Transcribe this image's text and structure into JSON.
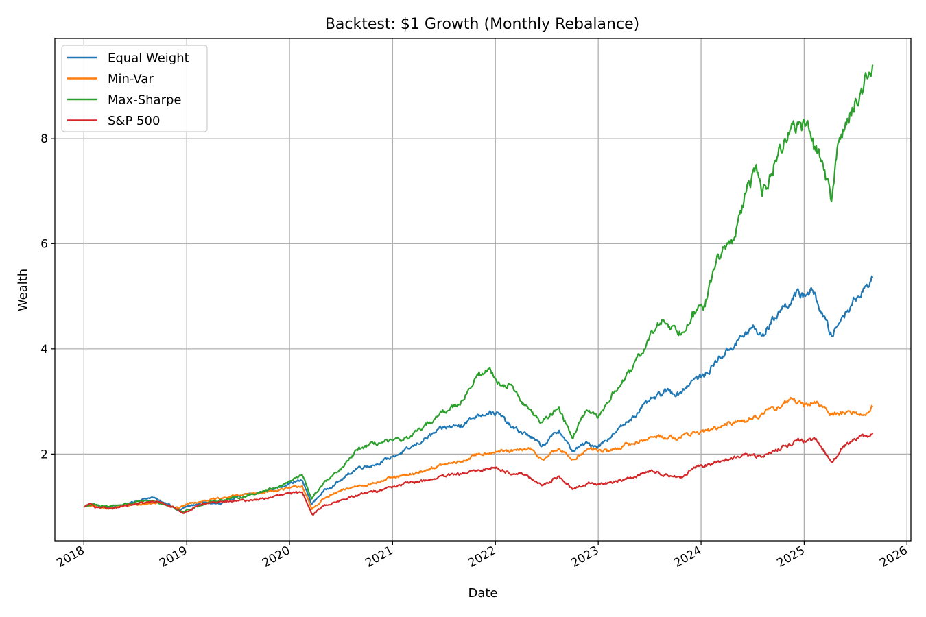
{
  "chart_data": {
    "type": "line",
    "title": "Backtest: $1 Growth (Monthly Rebalance)",
    "xlabel": "Date",
    "ylabel": "Wealth",
    "xlim": [
      "2017-09-20",
      "2026-01-15"
    ],
    "ylim": [
      0.35,
      9.9
    ],
    "x_ticks": [
      "2018",
      "2019",
      "2020",
      "2021",
      "2022",
      "2023",
      "2024",
      "2025",
      "2026"
    ],
    "y_ticks": [
      2,
      4,
      6,
      8
    ],
    "grid": true,
    "legend_position": "top-left",
    "series": [
      {
        "name": "Equal Weight",
        "color": "#1f77b4",
        "points": [
          [
            "2018-01-01",
            1.0
          ],
          [
            "2018-02-01",
            1.05
          ],
          [
            "2018-03-01",
            1.0
          ],
          [
            "2018-04-01",
            0.98
          ],
          [
            "2018-05-01",
            1.02
          ],
          [
            "2018-06-01",
            1.05
          ],
          [
            "2018-07-01",
            1.1
          ],
          [
            "2018-08-01",
            1.15
          ],
          [
            "2018-09-01",
            1.18
          ],
          [
            "2018-10-01",
            1.1
          ],
          [
            "2018-11-01",
            1.05
          ],
          [
            "2018-12-01",
            0.92
          ],
          [
            "2019-01-01",
            1.0
          ],
          [
            "2019-03-01",
            1.08
          ],
          [
            "2019-05-01",
            1.05
          ],
          [
            "2019-07-01",
            1.2
          ],
          [
            "2019-09-01",
            1.25
          ],
          [
            "2019-11-01",
            1.32
          ],
          [
            "2020-01-01",
            1.45
          ],
          [
            "2020-02-15",
            1.5
          ],
          [
            "2020-03-20",
            1.05
          ],
          [
            "2020-05-01",
            1.3
          ],
          [
            "2020-07-01",
            1.5
          ],
          [
            "2020-09-01",
            1.75
          ],
          [
            "2020-11-01",
            1.8
          ],
          [
            "2021-01-01",
            1.95
          ],
          [
            "2021-03-01",
            2.1
          ],
          [
            "2021-05-01",
            2.3
          ],
          [
            "2021-07-01",
            2.5
          ],
          [
            "2021-09-01",
            2.55
          ],
          [
            "2021-11-01",
            2.75
          ],
          [
            "2021-12-15",
            2.8
          ],
          [
            "2022-01-15",
            2.75
          ],
          [
            "2022-03-01",
            2.5
          ],
          [
            "2022-05-01",
            2.35
          ],
          [
            "2022-06-15",
            2.15
          ],
          [
            "2022-08-15",
            2.45
          ],
          [
            "2022-10-01",
            2.05
          ],
          [
            "2022-11-15",
            2.2
          ],
          [
            "2023-01-01",
            2.15
          ],
          [
            "2023-03-01",
            2.4
          ],
          [
            "2023-05-01",
            2.7
          ],
          [
            "2023-07-01",
            3.0
          ],
          [
            "2023-09-01",
            3.2
          ],
          [
            "2023-10-15",
            3.15
          ],
          [
            "2023-12-01",
            3.4
          ],
          [
            "2024-01-15",
            3.5
          ],
          [
            "2024-03-01",
            3.8
          ],
          [
            "2024-05-01",
            4.1
          ],
          [
            "2024-07-01",
            4.4
          ],
          [
            "2024-08-05",
            4.25
          ],
          [
            "2024-10-01",
            4.7
          ],
          [
            "2024-12-01",
            5.0
          ],
          [
            "2025-02-01",
            5.1
          ],
          [
            "2025-04-08",
            4.25
          ],
          [
            "2025-05-15",
            4.6
          ],
          [
            "2025-07-01",
            4.95
          ],
          [
            "2025-09-01",
            5.35
          ]
        ]
      },
      {
        "name": "Min-Var",
        "color": "#ff7f0e",
        "points": [
          [
            "2018-01-01",
            1.0
          ],
          [
            "2018-02-01",
            1.02
          ],
          [
            "2018-03-01",
            0.98
          ],
          [
            "2018-04-01",
            0.97
          ],
          [
            "2018-06-01",
            1.02
          ],
          [
            "2018-08-01",
            1.05
          ],
          [
            "2018-10-01",
            1.08
          ],
          [
            "2018-12-01",
            0.97
          ],
          [
            "2019-01-01",
            1.05
          ],
          [
            "2019-03-01",
            1.12
          ],
          [
            "2019-05-01",
            1.15
          ],
          [
            "2019-07-01",
            1.22
          ],
          [
            "2019-09-01",
            1.25
          ],
          [
            "2019-11-01",
            1.3
          ],
          [
            "2020-01-01",
            1.35
          ],
          [
            "2020-02-15",
            1.4
          ],
          [
            "2020-03-20",
            0.95
          ],
          [
            "2020-05-01",
            1.15
          ],
          [
            "2020-07-01",
            1.3
          ],
          [
            "2020-09-01",
            1.4
          ],
          [
            "2020-11-01",
            1.45
          ],
          [
            "2021-01-01",
            1.55
          ],
          [
            "2021-03-01",
            1.6
          ],
          [
            "2021-05-01",
            1.7
          ],
          [
            "2021-07-01",
            1.8
          ],
          [
            "2021-09-01",
            1.85
          ],
          [
            "2021-11-01",
            2.0
          ],
          [
            "2022-01-01",
            2.05
          ],
          [
            "2022-03-01",
            2.05
          ],
          [
            "2022-05-01",
            2.1
          ],
          [
            "2022-06-15",
            1.9
          ],
          [
            "2022-08-15",
            2.1
          ],
          [
            "2022-10-01",
            1.9
          ],
          [
            "2022-12-01",
            2.1
          ],
          [
            "2023-02-01",
            2.05
          ],
          [
            "2023-04-01",
            2.15
          ],
          [
            "2023-06-01",
            2.25
          ],
          [
            "2023-08-01",
            2.35
          ],
          [
            "2023-10-01",
            2.3
          ],
          [
            "2023-12-01",
            2.4
          ],
          [
            "2024-02-01",
            2.45
          ],
          [
            "2024-04-01",
            2.55
          ],
          [
            "2024-06-01",
            2.65
          ],
          [
            "2024-08-01",
            2.75
          ],
          [
            "2024-10-01",
            2.9
          ],
          [
            "2024-11-20",
            3.05
          ],
          [
            "2025-01-01",
            2.9
          ],
          [
            "2025-02-15",
            3.0
          ],
          [
            "2025-04-08",
            2.75
          ],
          [
            "2025-06-01",
            2.8
          ],
          [
            "2025-08-01",
            2.75
          ],
          [
            "2025-09-01",
            2.9
          ]
        ]
      },
      {
        "name": "Max-Sharpe",
        "color": "#2ca02c",
        "points": [
          [
            "2018-01-01",
            1.0
          ],
          [
            "2018-02-01",
            1.05
          ],
          [
            "2018-03-01",
            1.0
          ],
          [
            "2018-05-01",
            1.03
          ],
          [
            "2018-07-01",
            1.08
          ],
          [
            "2018-09-01",
            1.12
          ],
          [
            "2018-11-01",
            1.0
          ],
          [
            "2018-12-20",
            0.9
          ],
          [
            "2019-02-01",
            1.0
          ],
          [
            "2019-04-01",
            1.1
          ],
          [
            "2019-06-01",
            1.15
          ],
          [
            "2019-08-01",
            1.2
          ],
          [
            "2019-10-01",
            1.3
          ],
          [
            "2019-12-01",
            1.4
          ],
          [
            "2020-02-15",
            1.6
          ],
          [
            "2020-03-20",
            1.15
          ],
          [
            "2020-05-01",
            1.45
          ],
          [
            "2020-07-01",
            1.7
          ],
          [
            "2020-09-01",
            2.1
          ],
          [
            "2020-11-01",
            2.2
          ],
          [
            "2021-01-01",
            2.25
          ],
          [
            "2021-03-01",
            2.3
          ],
          [
            "2021-05-01",
            2.55
          ],
          [
            "2021-07-01",
            2.8
          ],
          [
            "2021-09-01",
            3.0
          ],
          [
            "2021-11-01",
            3.5
          ],
          [
            "2021-12-15",
            3.6
          ],
          [
            "2022-01-20",
            3.3
          ],
          [
            "2022-03-01",
            3.3
          ],
          [
            "2022-04-01",
            3.0
          ],
          [
            "2022-06-15",
            2.6
          ],
          [
            "2022-08-15",
            2.9
          ],
          [
            "2022-10-01",
            2.3
          ],
          [
            "2022-11-15",
            2.8
          ],
          [
            "2023-01-01",
            2.7
          ],
          [
            "2023-03-01",
            3.2
          ],
          [
            "2023-05-01",
            3.6
          ],
          [
            "2023-07-01",
            4.2
          ],
          [
            "2023-08-15",
            4.55
          ],
          [
            "2023-10-25",
            4.3
          ],
          [
            "2023-12-01",
            4.7
          ],
          [
            "2024-01-15",
            4.8
          ],
          [
            "2024-03-01",
            5.8
          ],
          [
            "2024-04-20",
            6.0
          ],
          [
            "2024-06-01",
            6.8
          ],
          [
            "2024-07-15",
            7.5
          ],
          [
            "2024-08-05",
            6.9
          ],
          [
            "2024-09-15",
            7.5
          ],
          [
            "2024-11-15",
            8.2
          ],
          [
            "2024-12-20",
            8.3
          ],
          [
            "2025-02-01",
            8.0
          ],
          [
            "2025-03-15",
            7.4
          ],
          [
            "2025-04-08",
            6.8
          ],
          [
            "2025-05-01",
            7.9
          ],
          [
            "2025-06-15",
            8.5
          ],
          [
            "2025-08-01",
            9.0
          ],
          [
            "2025-09-01",
            9.4
          ]
        ]
      },
      {
        "name": "S&P 500",
        "color": "#d62728",
        "points": [
          [
            "2018-01-01",
            1.0
          ],
          [
            "2018-01-25",
            1.06
          ],
          [
            "2018-02-10",
            0.98
          ],
          [
            "2018-04-01",
            0.97
          ],
          [
            "2018-06-01",
            1.02
          ],
          [
            "2018-08-01",
            1.07
          ],
          [
            "2018-09-20",
            1.1
          ],
          [
            "2018-11-01",
            1.02
          ],
          [
            "2018-12-24",
            0.88
          ],
          [
            "2019-02-01",
            1.0
          ],
          [
            "2019-04-01",
            1.08
          ],
          [
            "2019-06-01",
            1.1
          ],
          [
            "2019-08-01",
            1.12
          ],
          [
            "2019-10-01",
            1.15
          ],
          [
            "2019-12-01",
            1.22
          ],
          [
            "2020-02-15",
            1.28
          ],
          [
            "2020-03-23",
            0.85
          ],
          [
            "2020-05-01",
            1.02
          ],
          [
            "2020-07-01",
            1.12
          ],
          [
            "2020-09-01",
            1.22
          ],
          [
            "2020-11-01",
            1.3
          ],
          [
            "2021-01-01",
            1.38
          ],
          [
            "2021-03-01",
            1.45
          ],
          [
            "2021-05-01",
            1.5
          ],
          [
            "2021-07-01",
            1.58
          ],
          [
            "2021-09-01",
            1.62
          ],
          [
            "2021-12-30",
            1.75
          ],
          [
            "2022-03-01",
            1.62
          ],
          [
            "2022-04-01",
            1.65
          ],
          [
            "2022-06-15",
            1.4
          ],
          [
            "2022-08-15",
            1.58
          ],
          [
            "2022-10-01",
            1.33
          ],
          [
            "2022-12-01",
            1.45
          ],
          [
            "2023-01-01",
            1.42
          ],
          [
            "2023-03-01",
            1.48
          ],
          [
            "2023-05-01",
            1.55
          ],
          [
            "2023-07-01",
            1.68
          ],
          [
            "2023-10-25",
            1.55
          ],
          [
            "2023-12-01",
            1.72
          ],
          [
            "2024-02-01",
            1.8
          ],
          [
            "2024-04-01",
            1.9
          ],
          [
            "2024-06-01",
            1.98
          ],
          [
            "2024-08-05",
            1.95
          ],
          [
            "2024-10-01",
            2.1
          ],
          [
            "2024-12-05",
            2.25
          ],
          [
            "2025-02-15",
            2.25
          ],
          [
            "2025-04-08",
            1.85
          ],
          [
            "2025-05-15",
            2.1
          ],
          [
            "2025-07-01",
            2.28
          ],
          [
            "2025-09-01",
            2.4
          ]
        ]
      }
    ]
  }
}
